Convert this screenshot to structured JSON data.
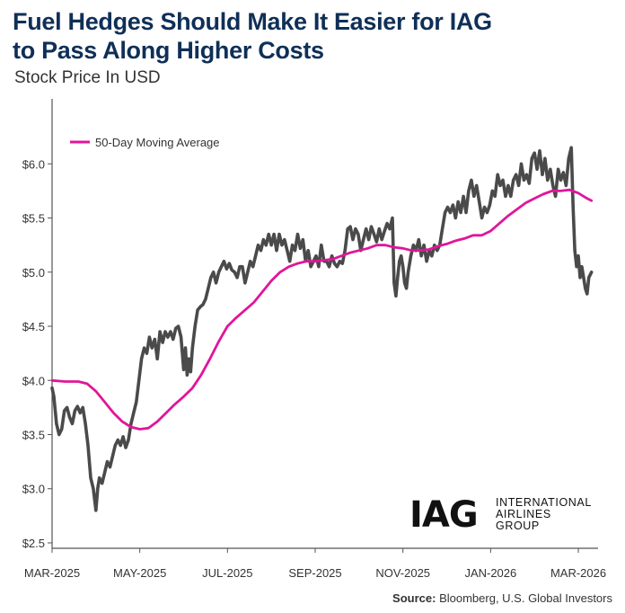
{
  "title_line1": "Fuel Hedges Should Make It Easier for IAG",
  "title_line2": "to Pass Along Higher Costs",
  "subtitle": "Stock Price In USD",
  "source_label": "Source:",
  "source_text": "Bloomberg, U.S. Global Investors",
  "logo": {
    "mark": "IAG",
    "line1": "INTERNATIONAL",
    "line2": "AIRLINES",
    "line3": "GROUP"
  },
  "colors": {
    "price": "#4a4a4a",
    "ma": "#e0169a",
    "axis": "#555555",
    "title": "#0f2f57"
  },
  "chart_data": {
    "type": "line",
    "title": "Fuel Hedges Should Make It Easier for IAG to Pass Along Higher Costs",
    "subtitle": "Stock Price In USD",
    "x_unit": "months since Mar 2025",
    "x_ticks": [
      {
        "x": 0,
        "label": "MAR-2025"
      },
      {
        "x": 2,
        "label": "MAY-2025"
      },
      {
        "x": 4,
        "label": "JUL-2025"
      },
      {
        "x": 6,
        "label": "SEP-2025"
      },
      {
        "x": 8,
        "label": "NOV-2025"
      },
      {
        "x": 10,
        "label": "JAN-2026"
      },
      {
        "x": 12,
        "label": "MAR-2026"
      }
    ],
    "y_ticks": [
      {
        "v": 2.5,
        "label": "$2.5"
      },
      {
        "v": 3.0,
        "label": "$3.0"
      },
      {
        "v": 3.5,
        "label": "$3.5"
      },
      {
        "v": 4.0,
        "label": "$4.0"
      },
      {
        "v": 4.5,
        "label": "$4.5"
      },
      {
        "v": 5.0,
        "label": "$5.0"
      },
      {
        "v": 5.5,
        "label": "$5.5"
      },
      {
        "v": 6.0,
        "label": "$6.0"
      }
    ],
    "xlim": [
      0,
      12.45
    ],
    "ylim": [
      2.45,
      6.6
    ],
    "legend": "top-left",
    "series": [
      {
        "name": "Stock Price",
        "color": "#4a4a4a",
        "points": [
          [
            0.0,
            3.93
          ],
          [
            0.04,
            3.85
          ],
          [
            0.1,
            3.6
          ],
          [
            0.16,
            3.5
          ],
          [
            0.22,
            3.55
          ],
          [
            0.28,
            3.72
          ],
          [
            0.34,
            3.75
          ],
          [
            0.4,
            3.66
          ],
          [
            0.46,
            3.6
          ],
          [
            0.52,
            3.72
          ],
          [
            0.58,
            3.76
          ],
          [
            0.64,
            3.7
          ],
          [
            0.7,
            3.75
          ],
          [
            0.76,
            3.6
          ],
          [
            0.82,
            3.4
          ],
          [
            0.88,
            3.1
          ],
          [
            0.94,
            3.0
          ],
          [
            1.0,
            2.8
          ],
          [
            1.04,
            3.0
          ],
          [
            1.08,
            3.1
          ],
          [
            1.14,
            3.05
          ],
          [
            1.2,
            3.15
          ],
          [
            1.26,
            3.25
          ],
          [
            1.32,
            3.2
          ],
          [
            1.38,
            3.3
          ],
          [
            1.44,
            3.4
          ],
          [
            1.5,
            3.45
          ],
          [
            1.56,
            3.4
          ],
          [
            1.62,
            3.48
          ],
          [
            1.68,
            3.38
          ],
          [
            1.74,
            3.45
          ],
          [
            1.8,
            3.6
          ],
          [
            1.86,
            3.7
          ],
          [
            1.92,
            3.8
          ],
          [
            1.98,
            4.0
          ],
          [
            2.04,
            4.2
          ],
          [
            2.1,
            4.3
          ],
          [
            2.16,
            4.25
          ],
          [
            2.22,
            4.4
          ],
          [
            2.28,
            4.3
          ],
          [
            2.34,
            4.38
          ],
          [
            2.4,
            4.2
          ],
          [
            2.46,
            4.45
          ],
          [
            2.52,
            4.35
          ],
          [
            2.58,
            4.45
          ],
          [
            2.64,
            4.4
          ],
          [
            2.7,
            4.45
          ],
          [
            2.76,
            4.38
          ],
          [
            2.82,
            4.48
          ],
          [
            2.88,
            4.5
          ],
          [
            2.94,
            4.4
          ],
          [
            3.0,
            4.1
          ],
          [
            3.04,
            4.3
          ],
          [
            3.08,
            4.05
          ],
          [
            3.12,
            4.2
          ],
          [
            3.16,
            4.08
          ],
          [
            3.2,
            4.3
          ],
          [
            3.26,
            4.5
          ],
          [
            3.32,
            4.65
          ],
          [
            3.38,
            4.68
          ],
          [
            3.44,
            4.7
          ],
          [
            3.5,
            4.75
          ],
          [
            3.56,
            4.85
          ],
          [
            3.62,
            4.95
          ],
          [
            3.68,
            5.0
          ],
          [
            3.74,
            4.9
          ],
          [
            3.8,
            5.0
          ],
          [
            3.86,
            5.05
          ],
          [
            3.92,
            5.1
          ],
          [
            3.98,
            5.03
          ],
          [
            4.04,
            5.08
          ],
          [
            4.1,
            5.02
          ],
          [
            4.16,
            5.0
          ],
          [
            4.22,
            4.95
          ],
          [
            4.28,
            5.05
          ],
          [
            4.34,
            5.05
          ],
          [
            4.4,
            4.9
          ],
          [
            4.46,
            5.0
          ],
          [
            4.52,
            5.1
          ],
          [
            4.58,
            5.05
          ],
          [
            4.64,
            5.15
          ],
          [
            4.7,
            5.25
          ],
          [
            4.76,
            5.2
          ],
          [
            4.82,
            5.3
          ],
          [
            4.88,
            5.25
          ],
          [
            4.94,
            5.35
          ],
          [
            5.0,
            5.25
          ],
          [
            5.06,
            5.35
          ],
          [
            5.12,
            5.2
          ],
          [
            5.18,
            5.35
          ],
          [
            5.24,
            5.25
          ],
          [
            5.3,
            5.3
          ],
          [
            5.36,
            5.2
          ],
          [
            5.42,
            5.1
          ],
          [
            5.48,
            5.25
          ],
          [
            5.54,
            5.2
          ],
          [
            5.6,
            5.35
          ],
          [
            5.66,
            5.22
          ],
          [
            5.72,
            5.3
          ],
          [
            5.78,
            5.1
          ],
          [
            5.84,
            5.2
          ],
          [
            5.9,
            5.05
          ],
          [
            5.96,
            5.1
          ],
          [
            6.02,
            5.15
          ],
          [
            6.08,
            5.05
          ],
          [
            6.14,
            5.25
          ],
          [
            6.2,
            5.1
          ],
          [
            6.26,
            5.1
          ],
          [
            6.32,
            5.05
          ],
          [
            6.38,
            5.15
          ],
          [
            6.44,
            5.08
          ],
          [
            6.5,
            5.05
          ],
          [
            6.56,
            5.1
          ],
          [
            6.62,
            5.08
          ],
          [
            6.68,
            5.2
          ],
          [
            6.74,
            5.4
          ],
          [
            6.8,
            5.42
          ],
          [
            6.86,
            5.3
          ],
          [
            6.92,
            5.4
          ],
          [
            6.98,
            5.35
          ],
          [
            7.04,
            5.2
          ],
          [
            7.1,
            5.3
          ],
          [
            7.16,
            5.4
          ],
          [
            7.22,
            5.3
          ],
          [
            7.28,
            5.42
          ],
          [
            7.34,
            5.35
          ],
          [
            7.4,
            5.28
          ],
          [
            7.46,
            5.4
          ],
          [
            7.52,
            5.3
          ],
          [
            7.58,
            5.38
          ],
          [
            7.64,
            5.45
          ],
          [
            7.7,
            5.4
          ],
          [
            7.76,
            5.5
          ],
          [
            7.8,
            4.9
          ],
          [
            7.84,
            4.78
          ],
          [
            7.88,
            4.95
          ],
          [
            7.92,
            5.1
          ],
          [
            7.96,
            5.15
          ],
          [
            8.0,
            5.05
          ],
          [
            8.04,
            4.9
          ],
          [
            8.08,
            4.85
          ],
          [
            8.12,
            5.0
          ],
          [
            8.18,
            5.15
          ],
          [
            8.24,
            5.25
          ],
          [
            8.3,
            5.2
          ],
          [
            8.36,
            5.3
          ],
          [
            8.42,
            5.15
          ],
          [
            8.48,
            5.25
          ],
          [
            8.54,
            5.1
          ],
          [
            8.6,
            5.2
          ],
          [
            8.66,
            5.15
          ],
          [
            8.72,
            5.25
          ],
          [
            8.78,
            5.2
          ],
          [
            8.84,
            5.25
          ],
          [
            8.9,
            5.4
          ],
          [
            8.96,
            5.55
          ],
          [
            9.02,
            5.6
          ],
          [
            9.08,
            5.55
          ],
          [
            9.14,
            5.62
          ],
          [
            9.2,
            5.5
          ],
          [
            9.26,
            5.65
          ],
          [
            9.32,
            5.55
          ],
          [
            9.38,
            5.7
          ],
          [
            9.44,
            5.55
          ],
          [
            9.5,
            5.75
          ],
          [
            9.56,
            5.85
          ],
          [
            9.62,
            5.7
          ],
          [
            9.68,
            5.8
          ],
          [
            9.74,
            5.65
          ],
          [
            9.8,
            5.5
          ],
          [
            9.86,
            5.6
          ],
          [
            9.92,
            5.55
          ],
          [
            9.98,
            5.62
          ],
          [
            10.04,
            5.75
          ],
          [
            10.1,
            5.7
          ],
          [
            10.16,
            5.9
          ],
          [
            10.22,
            5.8
          ],
          [
            10.28,
            5.85
          ],
          [
            10.34,
            5.7
          ],
          [
            10.4,
            5.8
          ],
          [
            10.46,
            5.7
          ],
          [
            10.52,
            5.85
          ],
          [
            10.58,
            5.9
          ],
          [
            10.64,
            5.8
          ],
          [
            10.7,
            6.0
          ],
          [
            10.76,
            5.85
          ],
          [
            10.82,
            5.9
          ],
          [
            10.88,
            5.82
          ],
          [
            10.94,
            6.05
          ],
          [
            11.0,
            6.1
          ],
          [
            11.06,
            5.95
          ],
          [
            11.12,
            6.12
          ],
          [
            11.18,
            5.9
          ],
          [
            11.24,
            6.05
          ],
          [
            11.3,
            5.85
          ],
          [
            11.36,
            5.95
          ],
          [
            11.42,
            5.8
          ],
          [
            11.48,
            5.7
          ],
          [
            11.54,
            5.95
          ],
          [
            11.6,
            5.85
          ],
          [
            11.66,
            5.92
          ],
          [
            11.72,
            5.8
          ],
          [
            11.78,
            6.05
          ],
          [
            11.84,
            6.15
          ],
          [
            11.88,
            5.6
          ],
          [
            11.92,
            5.2
          ],
          [
            11.96,
            5.05
          ],
          [
            12.0,
            5.15
          ],
          [
            12.04,
            4.95
          ],
          [
            12.08,
            5.05
          ],
          [
            12.12,
            4.95
          ],
          [
            12.16,
            4.85
          ],
          [
            12.2,
            4.8
          ],
          [
            12.24,
            4.95
          ],
          [
            12.3,
            5.0
          ]
        ]
      },
      {
        "name": "50-Day Moving Average",
        "color": "#e0169a",
        "points": [
          [
            0.0,
            4.0
          ],
          [
            0.3,
            3.99
          ],
          [
            0.6,
            3.99
          ],
          [
            0.8,
            3.97
          ],
          [
            1.0,
            3.9
          ],
          [
            1.2,
            3.8
          ],
          [
            1.4,
            3.7
          ],
          [
            1.6,
            3.62
          ],
          [
            1.8,
            3.57
          ],
          [
            2.0,
            3.55
          ],
          [
            2.2,
            3.56
          ],
          [
            2.4,
            3.62
          ],
          [
            2.6,
            3.7
          ],
          [
            2.8,
            3.78
          ],
          [
            3.0,
            3.85
          ],
          [
            3.2,
            3.93
          ],
          [
            3.4,
            4.05
          ],
          [
            3.6,
            4.2
          ],
          [
            3.8,
            4.36
          ],
          [
            4.0,
            4.5
          ],
          [
            4.2,
            4.58
          ],
          [
            4.4,
            4.65
          ],
          [
            4.6,
            4.72
          ],
          [
            4.8,
            4.82
          ],
          [
            5.0,
            4.92
          ],
          [
            5.2,
            5.0
          ],
          [
            5.4,
            5.05
          ],
          [
            5.6,
            5.08
          ],
          [
            5.8,
            5.1
          ],
          [
            6.0,
            5.1
          ],
          [
            6.2,
            5.11
          ],
          [
            6.4,
            5.12
          ],
          [
            6.6,
            5.15
          ],
          [
            6.8,
            5.18
          ],
          [
            7.0,
            5.2
          ],
          [
            7.2,
            5.22
          ],
          [
            7.4,
            5.25
          ],
          [
            7.6,
            5.25
          ],
          [
            7.8,
            5.23
          ],
          [
            8.0,
            5.22
          ],
          [
            8.2,
            5.2
          ],
          [
            8.4,
            5.2
          ],
          [
            8.6,
            5.21
          ],
          [
            8.8,
            5.24
          ],
          [
            9.0,
            5.26
          ],
          [
            9.2,
            5.29
          ],
          [
            9.4,
            5.31
          ],
          [
            9.6,
            5.34
          ],
          [
            9.8,
            5.34
          ],
          [
            10.0,
            5.38
          ],
          [
            10.2,
            5.45
          ],
          [
            10.4,
            5.52
          ],
          [
            10.6,
            5.58
          ],
          [
            10.8,
            5.64
          ],
          [
            11.0,
            5.68
          ],
          [
            11.2,
            5.72
          ],
          [
            11.4,
            5.75
          ],
          [
            11.6,
            5.75
          ],
          [
            11.8,
            5.76
          ],
          [
            12.0,
            5.73
          ],
          [
            12.2,
            5.68
          ],
          [
            12.3,
            5.66
          ]
        ]
      }
    ]
  }
}
